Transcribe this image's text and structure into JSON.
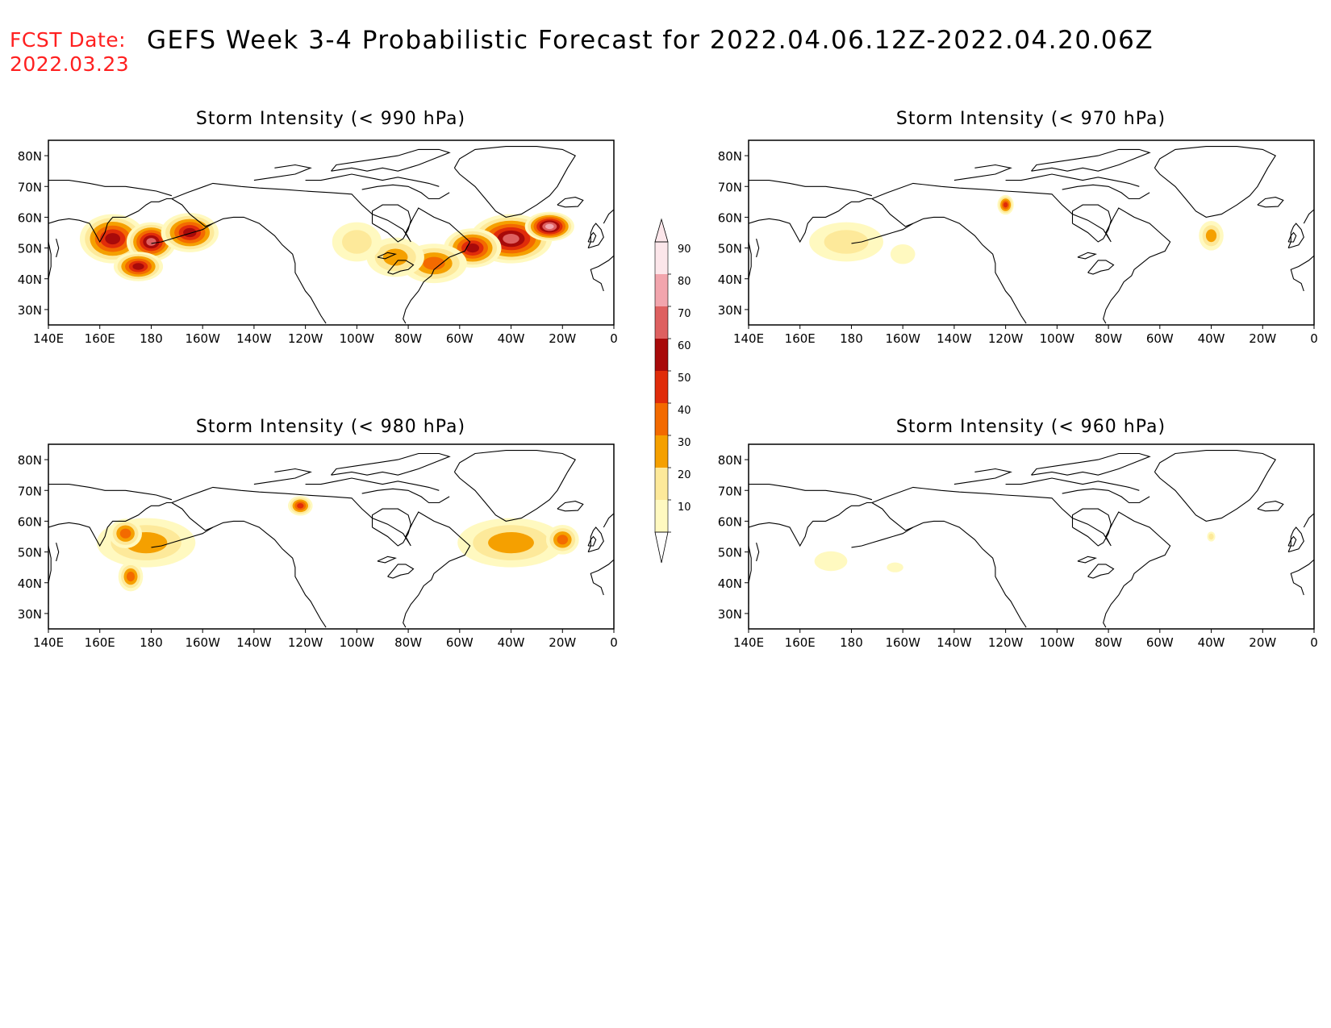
{
  "header": {
    "fcst_label": "FCST Date:",
    "fcst_date": "2022.03.23",
    "title": "GEFS Week 3-4 Probabilistic Forecast for 2022.04.06.12Z-2022.04.20.06Z"
  },
  "axes": {
    "lon_labels": [
      "140E",
      "160E",
      "180",
      "160W",
      "140W",
      "120W",
      "100W",
      "80W",
      "60W",
      "40W",
      "20W",
      "0"
    ],
    "lat_labels": [
      "80N",
      "70N",
      "60N",
      "50N",
      "40N",
      "30N"
    ]
  },
  "panels": [
    {
      "title": "Storm Intensity (< 990 hPa)",
      "blobs": [
        {
          "lon": 165,
          "lat": 53,
          "level": 60,
          "rlon": 8,
          "rlat": 5
        },
        {
          "lon": 180,
          "lat": 52,
          "level": 70,
          "rlon": 6,
          "rlat": 4
        },
        {
          "lon": -165,
          "lat": 55,
          "level": 60,
          "rlon": 7,
          "rlat": 4
        },
        {
          "lon": 175,
          "lat": 44,
          "level": 60,
          "rlon": 6,
          "rlat": 3
        },
        {
          "lon": -40,
          "lat": 53,
          "level": 70,
          "rlon": 10,
          "rlat": 5
        },
        {
          "lon": -25,
          "lat": 57,
          "level": 80,
          "rlon": 6,
          "rlat": 3
        },
        {
          "lon": -55,
          "lat": 50,
          "level": 60,
          "rlon": 7,
          "rlat": 4
        },
        {
          "lon": -70,
          "lat": 45,
          "level": 40,
          "rlon": 8,
          "rlat": 4
        },
        {
          "lon": -85,
          "lat": 47,
          "level": 30,
          "rlon": 7,
          "rlat": 4
        },
        {
          "lon": -100,
          "lat": 52,
          "level": 20,
          "rlon": 6,
          "rlat": 4
        }
      ]
    },
    {
      "title": "Storm Intensity (< 970 hPa)",
      "blobs": [
        {
          "lon": 178,
          "lat": 52,
          "level": 20,
          "rlon": 9,
          "rlat": 4
        },
        {
          "lon": -120,
          "lat": 64,
          "level": 50,
          "rlon": 2,
          "rlat": 2
        },
        {
          "lon": -40,
          "lat": 54,
          "level": 30,
          "rlon": 3,
          "rlat": 3
        },
        {
          "lon": -160,
          "lat": 48,
          "level": 10,
          "rlon": 3,
          "rlat": 2
        }
      ]
    },
    {
      "title": "Storm Intensity (< 980 hPa)",
      "blobs": [
        {
          "lon": 178,
          "lat": 53,
          "level": 30,
          "rlon": 12,
          "rlat": 5
        },
        {
          "lon": 170,
          "lat": 56,
          "level": 40,
          "rlon": 4,
          "rlat": 3
        },
        {
          "lon": -40,
          "lat": 53,
          "level": 30,
          "rlon": 13,
          "rlat": 5
        },
        {
          "lon": -20,
          "lat": 54,
          "level": 40,
          "rlon": 4,
          "rlat": 3
        },
        {
          "lon": -122,
          "lat": 65,
          "level": 50,
          "rlon": 3,
          "rlat": 2
        },
        {
          "lon": 172,
          "lat": 42,
          "level": 40,
          "rlon": 3,
          "rlat": 3
        }
      ]
    },
    {
      "title": "Storm Intensity (< 960 hPa)",
      "blobs": [
        {
          "lon": 172,
          "lat": 47,
          "level": 10,
          "rlon": 4,
          "rlat": 2
        },
        {
          "lon": -40,
          "lat": 55,
          "level": 20,
          "rlon": 1,
          "rlat": 1
        },
        {
          "lon": -163,
          "lat": 45,
          "level": 10,
          "rlon": 2,
          "rlat": 1
        }
      ]
    }
  ],
  "colorbar": {
    "labels": [
      "10",
      "20",
      "30",
      "40",
      "50",
      "60",
      "70",
      "80",
      "90"
    ],
    "colors": [
      "#fff9c0",
      "#fde99a",
      "#f5a000",
      "#f36a00",
      "#e02c0a",
      "#a80a0a",
      "#de6060",
      "#f2a5ad",
      "#fce6ea"
    ]
  }
}
